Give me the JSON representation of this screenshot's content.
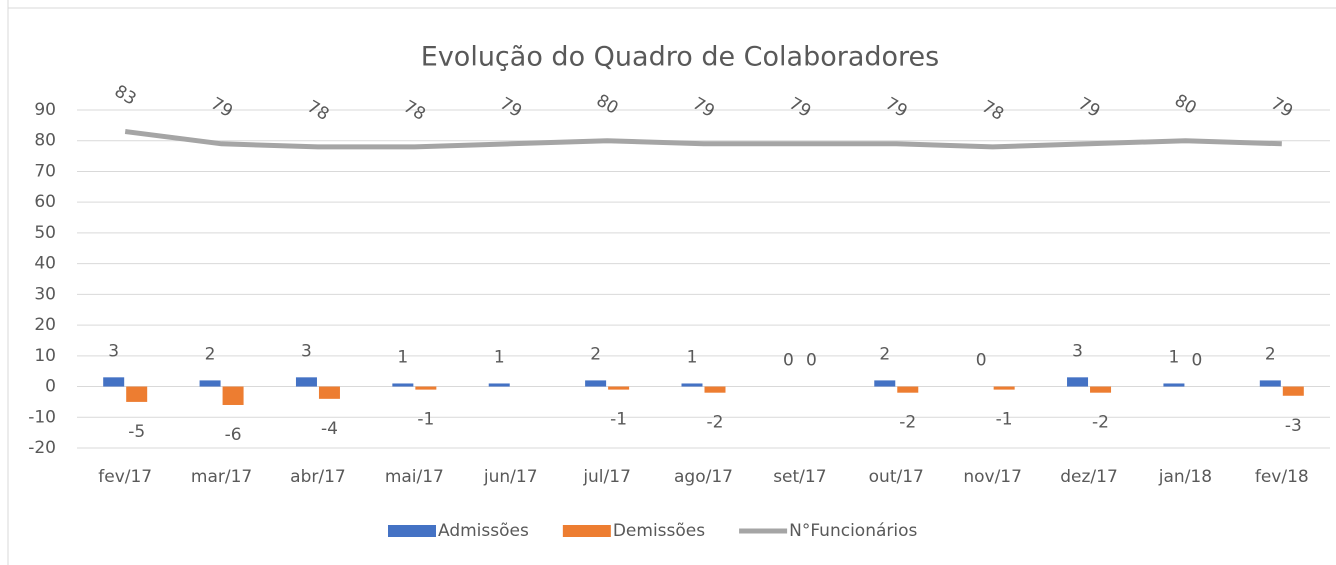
{
  "chart_data": {
    "type": "bar",
    "title": "Evolução do Quadro de Colaboradores",
    "categories": [
      "fev/17",
      "mar/17",
      "abr/17",
      "mai/17",
      "jun/17",
      "jul/17",
      "ago/17",
      "set/17",
      "out/17",
      "nov/17",
      "dez/17",
      "jan/18",
      "fev/18"
    ],
    "series": [
      {
        "name": "Admissões",
        "color": "#4472c4",
        "values": [
          3,
          2,
          3,
          1,
          1,
          2,
          1,
          0,
          2,
          0,
          3,
          1,
          2
        ]
      },
      {
        "name": "Demissões",
        "color": "#ed7d31",
        "values": [
          -5,
          -6,
          -4,
          -1,
          null,
          -1,
          -2,
          0,
          -2,
          -1,
          -2,
          0,
          -3
        ]
      },
      {
        "name": "N°Funcionários",
        "color": "#a5a5a5",
        "type": "line",
        "values": [
          83,
          79,
          78,
          78,
          79,
          80,
          79,
          79,
          79,
          78,
          79,
          80,
          79
        ]
      }
    ],
    "ylim": [
      -20,
      90
    ],
    "yticks": [
      -20,
      -10,
      0,
      10,
      20,
      30,
      40,
      50,
      60,
      70,
      80,
      90
    ],
    "grid": true,
    "legend": "bottom"
  }
}
